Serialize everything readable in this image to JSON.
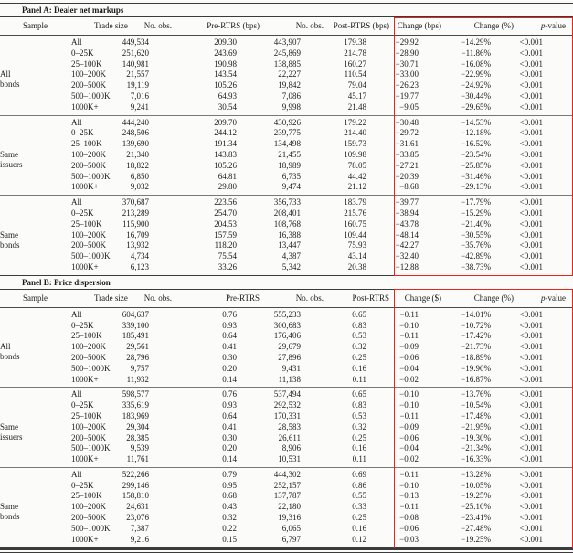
{
  "highlight_color": "#e8251d",
  "panels": [
    {
      "id": "A",
      "title": "Panel A: Dealer net markups",
      "columns": [
        "Sample",
        "Trade size",
        "No. obs.",
        "Pre-RTRS (bps)",
        "No. obs.",
        "Post-RTRS (bps)",
        "Change (bps)",
        "Change (%)",
        "p-value"
      ],
      "groups": [
        {
          "sample": "All bonds",
          "rows": [
            [
              "All",
              "449,534",
              "209.30",
              "443,907",
              "179.38",
              "−29.92",
              "−14.29%",
              "<0.001"
            ],
            [
              "0–25K",
              "251,620",
              "243.69",
              "245,869",
              "214.78",
              "−28.90",
              "−11.86%",
              "<0.001"
            ],
            [
              "25–100K",
              "140,981",
              "190.98",
              "138,885",
              "160.27",
              "−30.71",
              "−16.08%",
              "<0.001"
            ],
            [
              "100–200K",
              "21,557",
              "143.54",
              "22,227",
              "110.54",
              "−33.00",
              "−22.99%",
              "<0.001"
            ],
            [
              "200–500K",
              "19,119",
              "105.26",
              "19,842",
              "79.04",
              "−26.23",
              "−24.92%",
              "<0.001"
            ],
            [
              "500–1000K",
              "7,016",
              "64.93",
              "7,086",
              "45.17",
              "−19.77",
              "−30.44%",
              "<0.001"
            ],
            [
              "1000K+",
              "9,241",
              "30.54",
              "9,998",
              "21.48",
              "−9.05",
              "−29.65%",
              "<0.001"
            ]
          ]
        },
        {
          "sample": "Same issuers",
          "rows": [
            [
              "All",
              "444,240",
              "209.70",
              "430,926",
              "179.22",
              "−30.48",
              "−14.53%",
              "<0.001"
            ],
            [
              "0–25K",
              "248,506",
              "244.12",
              "239,775",
              "214.40",
              "−29.72",
              "−12.18%",
              "<0.001"
            ],
            [
              "25–100K",
              "139,690",
              "191.34",
              "134,498",
              "159.73",
              "−31.61",
              "−16.52%",
              "<0.001"
            ],
            [
              "100–200K",
              "21,340",
              "143.83",
              "21,455",
              "109.98",
              "−33.85",
              "−23.54%",
              "<0.001"
            ],
            [
              "200–500K",
              "18,822",
              "105.26",
              "18,989",
              "78.05",
              "−27.21",
              "−25.85%",
              "<0.001"
            ],
            [
              "500–1000K",
              "6,850",
              "64.81",
              "6,735",
              "44.42",
              "−20.39",
              "−31.46%",
              "<0.001"
            ],
            [
              "1000K+",
              "9,032",
              "29.80",
              "9,474",
              "21.12",
              "−8.68",
              "−29.13%",
              "<0.001"
            ]
          ]
        },
        {
          "sample": "Same bonds",
          "rows": [
            [
              "All",
              "370,687",
              "223.56",
              "356,733",
              "183.79",
              "−39.77",
              "−17.79%",
              "<0.001"
            ],
            [
              "0–25K",
              "213,289",
              "254.70",
              "208,401",
              "215.76",
              "−38.94",
              "−15.29%",
              "<0.001"
            ],
            [
              "25–100K",
              "115,900",
              "204.53",
              "108,768",
              "160.75",
              "−43.78",
              "−21.40%",
              "<0.001"
            ],
            [
              "100–200K",
              "16,709",
              "157.59",
              "16,388",
              "109.44",
              "−48.14",
              "−30.55%",
              "<0.001"
            ],
            [
              "200–500K",
              "13,932",
              "118.20",
              "13,447",
              "75.93",
              "−42.27",
              "−35.76%",
              "<0.001"
            ],
            [
              "500–1000K",
              "4,734",
              "75.54",
              "4,387",
              "43.14",
              "−32.40",
              "−42.89%",
              "<0.001"
            ],
            [
              "1000K+",
              "6,123",
              "33.26",
              "5,342",
              "20.38",
              "−12.88",
              "−38.73%",
              "<0.001"
            ]
          ]
        }
      ]
    },
    {
      "id": "B",
      "title": "Panel B: Price dispersion",
      "columns": [
        "Sample",
        "Trade size",
        "No. obs.",
        "Pre-RTRS",
        "No. obs.",
        "Post-RTRS",
        "Change ($)",
        "Change (%)",
        "p-value"
      ],
      "groups": [
        {
          "sample": "All bonds",
          "rows": [
            [
              "All",
              "604,637",
              "0.76",
              "555,233",
              "0.65",
              "−0.11",
              "−14.01%",
              "<0.001"
            ],
            [
              "0–25K",
              "339,100",
              "0.93",
              "300,683",
              "0.83",
              "−0.10",
              "−10.72%",
              "<0.001"
            ],
            [
              "25–100K",
              "185,491",
              "0.64",
              "176,406",
              "0.53",
              "−0.11",
              "−17.42%",
              "<0.001"
            ],
            [
              "100–200K",
              "29,561",
              "0.41",
              "29,679",
              "0.32",
              "−0.09",
              "−21.73%",
              "<0.001"
            ],
            [
              "200–500K",
              "28,796",
              "0.30",
              "27,896",
              "0.25",
              "−0.06",
              "−18.89%",
              "<0.001"
            ],
            [
              "500–1000K",
              "9,757",
              "0.20",
              "9,431",
              "0.16",
              "−0.04",
              "−19.90%",
              "<0.001"
            ],
            [
              "1000K+",
              "11,932",
              "0.14",
              "11,138",
              "0.11",
              "−0.02",
              "−16.87%",
              "<0.001"
            ]
          ]
        },
        {
          "sample": "Same issuers",
          "rows": [
            [
              "All",
              "598,577",
              "0.76",
              "537,494",
              "0.65",
              "−0.10",
              "−13.76%",
              "<0.001"
            ],
            [
              "0–25K",
              "335,619",
              "0.93",
              "292,532",
              "0.83",
              "−0.10",
              "−10.54%",
              "<0.001"
            ],
            [
              "25–100K",
              "183,969",
              "0.64",
              "170,331",
              "0.53",
              "−0.11",
              "−17.48%",
              "<0.001"
            ],
            [
              "100–200K",
              "29,304",
              "0.41",
              "28,583",
              "0.32",
              "−0.09",
              "−21.95%",
              "<0.001"
            ],
            [
              "200–500K",
              "28,385",
              "0.30",
              "26,611",
              "0.25",
              "−0.06",
              "−19.30%",
              "<0.001"
            ],
            [
              "500–1000K",
              "9,539",
              "0.20",
              "8,906",
              "0.16",
              "−0.04",
              "−21.34%",
              "<0.001"
            ],
            [
              "1000K+",
              "11,761",
              "0.14",
              "10,531",
              "0.11",
              "−0.02",
              "−16.33%",
              "<0.001"
            ]
          ]
        },
        {
          "sample": "Same bonds",
          "rows": [
            [
              "All",
              "522,266",
              "0.79",
              "444,302",
              "0.69",
              "−0.11",
              "−13.28%",
              "<0.001"
            ],
            [
              "0–25K",
              "299,146",
              "0.95",
              "252,157",
              "0.86",
              "−0.10",
              "−10.05%",
              "<0.001"
            ],
            [
              "25–100K",
              "158,810",
              "0.68",
              "137,787",
              "0.55",
              "−0.13",
              "−19.25%",
              "<0.001"
            ],
            [
              "100–200K",
              "24,631",
              "0.43",
              "22,180",
              "0.33",
              "−0.11",
              "−25.10%",
              "<0.001"
            ],
            [
              "200–500K",
              "23,076",
              "0.32",
              "19,316",
              "0.25",
              "−0.08",
              "−23.41%",
              "<0.001"
            ],
            [
              "500–1000K",
              "7,387",
              "0.22",
              "6,065",
              "0.16",
              "−0.06",
              "−27.48%",
              "<0.001"
            ],
            [
              "1000K+",
              "9,216",
              "0.15",
              "6,797",
              "0.12",
              "−0.03",
              "−19.25%",
              "<0.001"
            ]
          ]
        }
      ]
    }
  ]
}
